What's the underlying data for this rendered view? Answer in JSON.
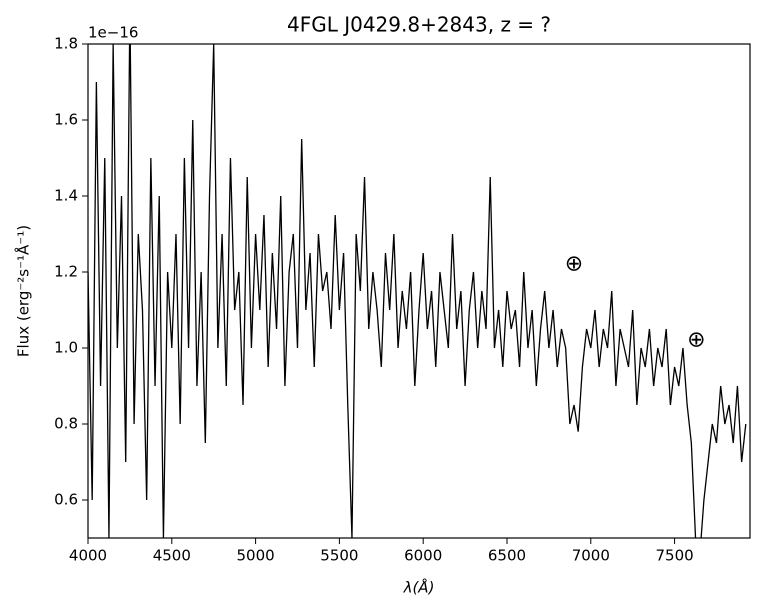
{
  "chart_data": {
    "type": "line",
    "title": "4FGL J0429.8+2843, z = ?",
    "x_label": "λ(Å)",
    "y_label": "Flux (erg⁻²s⁻¹Å⁻¹)",
    "y_offset_label": "1e−16",
    "x": [
      4000,
      4025,
      4050,
      4075,
      4100,
      4125,
      4150,
      4175,
      4200,
      4225,
      4250,
      4275,
      4300,
      4325,
      4350,
      4375,
      4400,
      4425,
      4450,
      4475,
      4500,
      4525,
      4550,
      4575,
      4600,
      4625,
      4650,
      4675,
      4700,
      4725,
      4750,
      4775,
      4800,
      4825,
      4850,
      4875,
      4900,
      4925,
      4950,
      4975,
      5000,
      5025,
      5050,
      5075,
      5100,
      5125,
      5150,
      5175,
      5200,
      5225,
      5250,
      5275,
      5300,
      5325,
      5350,
      5375,
      5400,
      5425,
      5450,
      5475,
      5500,
      5525,
      5550,
      5575,
      5600,
      5625,
      5650,
      5675,
      5700,
      5725,
      5750,
      5775,
      5800,
      5825,
      5850,
      5875,
      5900,
      5925,
      5950,
      5975,
      6000,
      6025,
      6050,
      6075,
      6100,
      6125,
      6150,
      6175,
      6200,
      6225,
      6250,
      6275,
      6300,
      6325,
      6350,
      6375,
      6400,
      6425,
      6450,
      6475,
      6500,
      6525,
      6550,
      6575,
      6600,
      6625,
      6650,
      6675,
      6700,
      6725,
      6750,
      6775,
      6800,
      6825,
      6850,
      6875,
      6900,
      6925,
      6950,
      6975,
      7000,
      7025,
      7050,
      7075,
      7100,
      7125,
      7150,
      7175,
      7200,
      7225,
      7250,
      7275,
      7300,
      7325,
      7350,
      7375,
      7400,
      7425,
      7450,
      7475,
      7500,
      7525,
      7550,
      7575,
      7600,
      7625,
      7650,
      7675,
      7700,
      7725,
      7750,
      7775,
      7800,
      7825,
      7850,
      7875,
      7900,
      7925
    ],
    "series": [
      {
        "color": "#000000",
        "values": [
          1.2,
          0.6,
          1.7,
          0.9,
          1.5,
          0.5,
          1.8,
          1.0,
          1.4,
          0.7,
          1.9,
          0.8,
          1.3,
          1.1,
          0.6,
          1.5,
          0.9,
          1.4,
          0.5,
          1.2,
          1.0,
          1.3,
          0.8,
          1.5,
          1.0,
          1.6,
          0.9,
          1.2,
          0.75,
          1.4,
          1.8,
          1.0,
          1.3,
          0.9,
          1.5,
          1.1,
          1.2,
          0.85,
          1.45,
          1.0,
          1.3,
          1.1,
          1.35,
          0.95,
          1.25,
          1.05,
          1.4,
          0.9,
          1.2,
          1.3,
          1.0,
          1.55,
          1.1,
          1.25,
          0.95,
          1.3,
          1.15,
          1.2,
          1.05,
          1.35,
          1.1,
          1.25,
          0.85,
          0.5,
          1.3,
          1.15,
          1.45,
          1.05,
          1.2,
          1.1,
          0.95,
          1.25,
          1.1,
          1.3,
          1.0,
          1.15,
          1.05,
          1.2,
          0.9,
          1.1,
          1.25,
          1.05,
          1.15,
          0.95,
          1.2,
          1.1,
          1.0,
          1.3,
          1.05,
          1.15,
          0.9,
          1.1,
          1.2,
          1.0,
          1.15,
          1.05,
          1.45,
          1.0,
          1.1,
          0.95,
          1.15,
          1.05,
          1.1,
          0.95,
          1.2,
          1.0,
          1.1,
          0.9,
          1.05,
          1.15,
          1.0,
          1.1,
          0.95,
          1.05,
          1.0,
          0.8,
          0.85,
          0.78,
          0.95,
          1.05,
          1.0,
          1.1,
          0.95,
          1.05,
          1.0,
          1.15,
          0.9,
          1.05,
          1.0,
          0.95,
          1.1,
          0.85,
          1.0,
          0.95,
          1.05,
          0.9,
          1.0,
          0.95,
          1.05,
          0.85,
          0.95,
          0.9,
          1.0,
          0.85,
          0.75,
          0.5,
          0.45,
          0.6,
          0.7,
          0.8,
          0.75,
          0.9,
          0.8,
          0.85,
          0.75,
          0.9,
          0.7,
          0.8
        ]
      }
    ],
    "xlim": [
      4000,
      7950
    ],
    "ylim": [
      0.5,
      1.8
    ],
    "xticks": [
      4000,
      4500,
      5000,
      5500,
      6000,
      6500,
      7000,
      7500
    ],
    "yticks": [
      0.6,
      0.8,
      {
        "value": 1,
        "label": "1.0"
      },
      1.2,
      1.4,
      1.6,
      1.8
    ],
    "annotations": [
      {
        "text": "⊕",
        "x": 6900,
        "y": 1.22
      },
      {
        "text": "⊕",
        "x": 7630,
        "y": 1.02
      }
    ]
  }
}
